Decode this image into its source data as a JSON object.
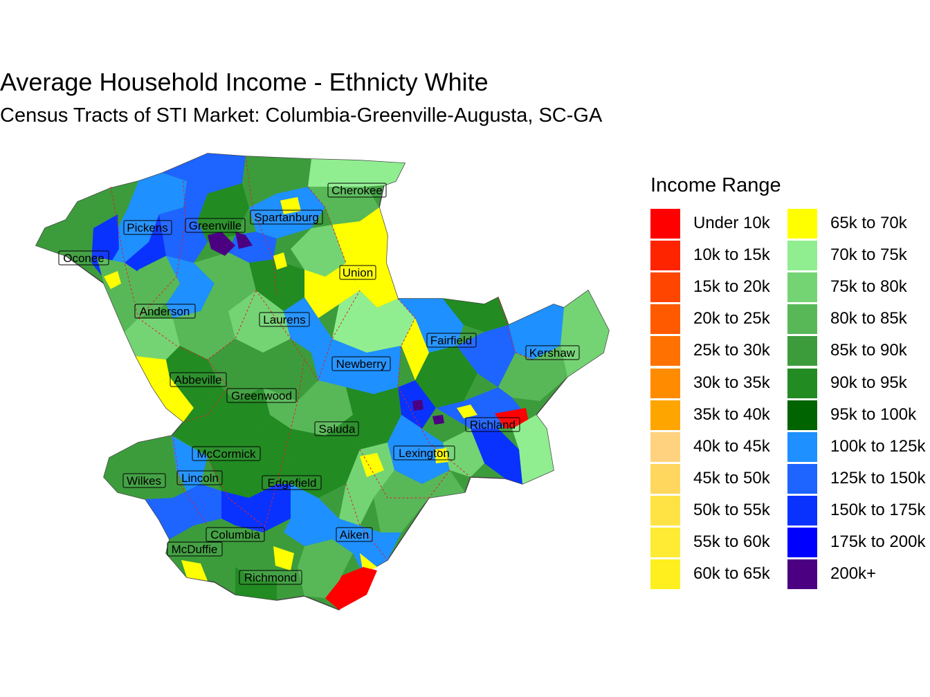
{
  "title": "Average Household Income - Ethnicty White",
  "subtitle": "Census Tracts of STI Market: Columbia-Greenville-Augusta, SC-GA",
  "legend": {
    "title": "Income Range",
    "items": [
      {
        "label": "Under 10k",
        "color": "#ff0000"
      },
      {
        "label": "10k to 15k",
        "color": "#ff2400"
      },
      {
        "label": "15k to 20k",
        "color": "#ff4500"
      },
      {
        "label": "20k to 25k",
        "color": "#ff5a00"
      },
      {
        "label": "25k to 30k",
        "color": "#ff7100"
      },
      {
        "label": "30k to 35k",
        "color": "#ff8c00"
      },
      {
        "label": "35k to 40k",
        "color": "#ffa500"
      },
      {
        "label": "40k to 45k",
        "color": "#ffd27f"
      },
      {
        "label": "45k to 50k",
        "color": "#ffd75e"
      },
      {
        "label": "50k to 55k",
        "color": "#ffe344"
      },
      {
        "label": "55k to 60k",
        "color": "#ffeb33"
      },
      {
        "label": "60k to 65k",
        "color": "#ffef1f"
      },
      {
        "label": "65k to 70k",
        "color": "#ffff00"
      },
      {
        "label": "70k to 75k",
        "color": "#90ee90"
      },
      {
        "label": "75k to 80k",
        "color": "#74d474"
      },
      {
        "label": "80k to 85k",
        "color": "#58b858"
      },
      {
        "label": "85k to 90k",
        "color": "#3c9c3c"
      },
      {
        "label": "90k to 95k",
        "color": "#228b22"
      },
      {
        "label": "95k to 100k",
        "color": "#006400"
      },
      {
        "label": "100k to 125k",
        "color": "#1e90ff"
      },
      {
        "label": "125k to 150k",
        "color": "#1e64ff"
      },
      {
        "label": "150k to 175k",
        "color": "#0a32ff"
      },
      {
        "label": "175k to 200k",
        "color": "#0000ff"
      },
      {
        "label": "200k+",
        "color": "#4b0082"
      }
    ]
  },
  "counties": [
    {
      "name": "Cherokee",
      "income": "75k to 80k"
    },
    {
      "name": "Pickens",
      "income": "85k to 90k"
    },
    {
      "name": "Greenville",
      "income": "100k to 125k"
    },
    {
      "name": "Spartanburg",
      "income": "100k to 125k"
    },
    {
      "name": "Oconee",
      "income": "85k to 90k"
    },
    {
      "name": "Union",
      "income": "65k to 70k"
    },
    {
      "name": "Anderson",
      "income": "80k to 85k"
    },
    {
      "name": "Laurens",
      "income": "80k to 85k"
    },
    {
      "name": "Fairfield",
      "income": "100k to 125k"
    },
    {
      "name": "Kershaw",
      "income": "75k to 80k"
    },
    {
      "name": "Newberry",
      "income": "100k to 125k"
    },
    {
      "name": "Abbeville",
      "income": "90k to 95k"
    },
    {
      "name": "Greenwood",
      "income": "85k to 90k"
    },
    {
      "name": "Saluda",
      "income": "90k to 95k"
    },
    {
      "name": "Richland",
      "income": "125k to 150k"
    },
    {
      "name": "McCormick",
      "income": "90k to 95k"
    },
    {
      "name": "Lexington",
      "income": "100k to 125k"
    },
    {
      "name": "Wilkes",
      "income": "85k to 90k"
    },
    {
      "name": "Lincoln",
      "income": "100k to 125k"
    },
    {
      "name": "Edgefield",
      "income": "90k to 95k"
    },
    {
      "name": "Columbia",
      "income": "125k to 150k"
    },
    {
      "name": "Aiken",
      "income": "80k to 85k"
    },
    {
      "name": "McDuffie",
      "income": "85k to 90k"
    },
    {
      "name": "Richmond",
      "income": "85k to 90k"
    }
  ]
}
